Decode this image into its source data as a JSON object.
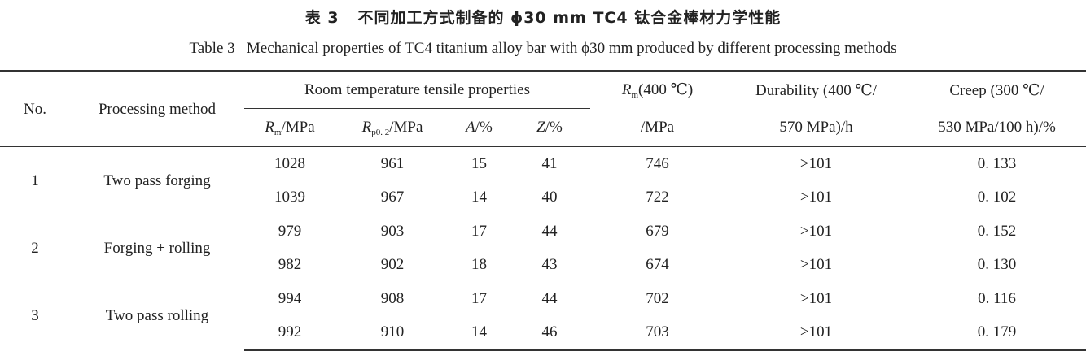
{
  "title_cn": "表 3   不同加工方式制备的 ϕ30 mm TC4 钛合金棒材力学性能",
  "title_en": "Table 3   Mechanical properties of TC4 titanium alloy bar with ϕ30 mm produced by different processing methods",
  "headers": {
    "no": "No.",
    "method": "Processing method",
    "group": "Room temperature tensile properties",
    "rm": {
      "sym": "R",
      "sub": "m",
      "unit": "/MPa"
    },
    "rp": {
      "sym": "R",
      "sub": "p0. 2",
      "unit": "/MPa"
    },
    "a": {
      "sym": "A",
      "unit": "/%"
    },
    "z": {
      "sym": "Z",
      "unit": "/%"
    },
    "rm400": {
      "sym": "R",
      "sub": "m",
      "line1": "(400 ℃)",
      "line2": "/MPa"
    },
    "durability": {
      "line1": "Durability (400 ℃/",
      "line2": "570 MPa)/h"
    },
    "creep": {
      "line1": "Creep (300 ℃/",
      "line2": "530 MPa/100 h)/%"
    }
  },
  "groups": [
    {
      "no": "1",
      "method": "Two pass forging",
      "rows": [
        [
          "1028",
          "961",
          "15",
          "41",
          "746",
          ">101",
          "0. 133"
        ],
        [
          "1039",
          "967",
          "14",
          "40",
          "722",
          ">101",
          "0. 102"
        ]
      ]
    },
    {
      "no": "2",
      "method": "Forging + rolling",
      "rows": [
        [
          "979",
          "903",
          "17",
          "44",
          "679",
          ">101",
          "0. 152"
        ],
        [
          "982",
          "902",
          "18",
          "43",
          "674",
          ">101",
          "0. 130"
        ]
      ]
    },
    {
      "no": "3",
      "method": "Two pass rolling",
      "rows": [
        [
          "994",
          "908",
          "17",
          "44",
          "702",
          ">101",
          "0. 116"
        ],
        [
          "992",
          "910",
          "14",
          "46",
          "703",
          ">101",
          "0. 179"
        ]
      ]
    }
  ]
}
